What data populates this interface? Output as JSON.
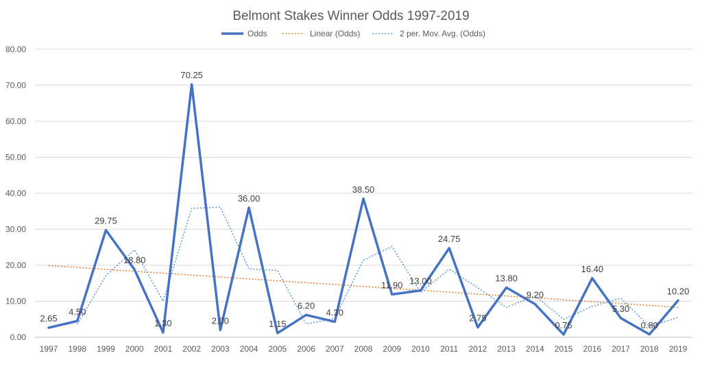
{
  "chart_data": {
    "type": "line",
    "title": "Belmont Stakes Winner Odds 1997-2019",
    "xlabel": "",
    "ylabel": "",
    "ylim": [
      0,
      80
    ],
    "yticks": [
      "0.00",
      "10.00",
      "20.00",
      "30.00",
      "40.00",
      "50.00",
      "60.00",
      "70.00",
      "80.00"
    ],
    "grid": true,
    "legend_position": "top",
    "categories": [
      "1997",
      "1998",
      "1999",
      "2000",
      "2001",
      "2002",
      "2003",
      "2004",
      "2005",
      "2006",
      "2007",
      "2008",
      "2009",
      "2010",
      "2011",
      "2012",
      "2013",
      "2014",
      "2015",
      "2016",
      "2017",
      "2018",
      "2019"
    ],
    "series": [
      {
        "name": "Odds",
        "color": "#4472c4",
        "values": [
          2.65,
          4.5,
          29.75,
          18.8,
          1.3,
          70.25,
          2.0,
          36.0,
          1.15,
          6.2,
          4.3,
          38.5,
          11.9,
          13.0,
          24.75,
          2.75,
          13.8,
          9.2,
          0.75,
          16.4,
          5.3,
          0.8,
          10.2
        ],
        "labels": [
          "2.65",
          "4.50",
          "29.75",
          "18.80",
          "1.30",
          "70.25",
          "2.00",
          "36.00",
          "1.15",
          "6.20",
          "4.30",
          "38.50",
          "11.90",
          "13.00",
          "24.75",
          "2.75",
          "13.80",
          "9.20",
          "0.75",
          "16.40",
          "5.30",
          "0.80",
          "10.20"
        ]
      },
      {
        "name": "Linear (Odds)",
        "color": "#ed7d31",
        "style": "dotted",
        "start": 19.9,
        "end": 8.3
      },
      {
        "name": "2 per. Mov. Avg. (Odds)",
        "color": "#5b9bd5",
        "style": "dotted",
        "values": [
          null,
          3.58,
          17.13,
          24.28,
          10.05,
          35.78,
          36.13,
          19.0,
          18.58,
          3.68,
          5.25,
          21.4,
          25.2,
          12.45,
          18.88,
          13.75,
          8.28,
          11.5,
          4.98,
          8.58,
          10.85,
          3.05,
          5.5
        ]
      }
    ]
  }
}
